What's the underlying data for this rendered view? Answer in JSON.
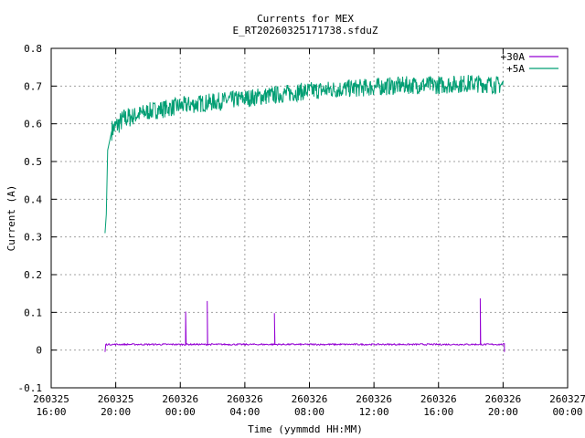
{
  "chart_data": {
    "type": "line",
    "title": "Currents for MEX",
    "subtitle": "E_RT20260325171738.sfduZ",
    "xlabel": "Time (yymmdd HH:MM)",
    "ylabel": "Current (A)",
    "ylim": [
      -0.1,
      0.8
    ],
    "yticks": [
      "-0.1",
      "0",
      "0.1",
      "0.2",
      "0.3",
      "0.4",
      "0.5",
      "0.6",
      "0.7",
      "0.8"
    ],
    "xlim_hours": [
      0,
      32
    ],
    "xticks": [
      {
        "date": "260325",
        "time": "16:00"
      },
      {
        "date": "260325",
        "time": "20:00"
      },
      {
        "date": "260326",
        "time": "00:00"
      },
      {
        "date": "260326",
        "time": "04:00"
      },
      {
        "date": "260326",
        "time": "08:00"
      },
      {
        "date": "260326",
        "time": "12:00"
      },
      {
        "date": "260326",
        "time": "16:00"
      },
      {
        "date": "260326",
        "time": "20:00"
      },
      {
        "date": "260327",
        "time": "00:00"
      }
    ],
    "grid": true,
    "legend_position": "top-right",
    "series": [
      {
        "name": "+30A",
        "color": "#9400d3",
        "start": "260325 19:20",
        "end": "260326 20:05",
        "baseline": 0.015,
        "spikes": [
          {
            "time": "260326 00:20",
            "value": 0.102
          },
          {
            "time": "260326 01:40",
            "value": 0.13
          },
          {
            "time": "260326 05:50",
            "value": 0.098
          },
          {
            "time": "260326 18:35",
            "value": 0.137
          }
        ]
      },
      {
        "name": "+5A",
        "color": "#009e73",
        "points": [
          [
            "260325 19:20",
            0.31
          ],
          [
            "260325 19:25",
            0.36
          ],
          [
            "260325 19:30",
            0.53
          ],
          [
            "260325 19:45",
            0.58
          ],
          [
            "260325 20:30",
            0.61
          ],
          [
            "260325 22:00",
            0.63
          ],
          [
            "260326 00:00",
            0.645
          ],
          [
            "260326 02:00",
            0.655
          ],
          [
            "260326 04:00",
            0.665
          ],
          [
            "260326 06:00",
            0.675
          ],
          [
            "260326 08:00",
            0.685
          ],
          [
            "260326 10:00",
            0.69
          ],
          [
            "260326 12:00",
            0.695
          ],
          [
            "260326 14:00",
            0.7
          ],
          [
            "260326 16:00",
            0.7
          ],
          [
            "260326 18:00",
            0.705
          ],
          [
            "260326 20:00",
            0.7
          ]
        ]
      }
    ]
  }
}
